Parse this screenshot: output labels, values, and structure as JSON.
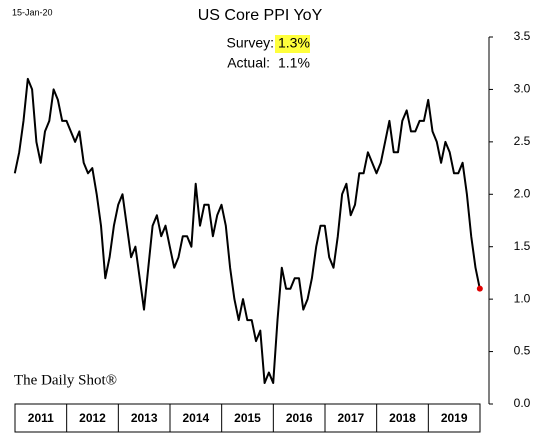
{
  "date_label": "15-Jan-20",
  "chart_data": {
    "type": "line",
    "title": "US Core PPI YoY",
    "survey": {
      "label": "Survey:",
      "value": "1.3%"
    },
    "actual": {
      "label": "Actual:",
      "value": "1.1%"
    },
    "source": "The Daily Shot®",
    "year_bands": [
      "2011",
      "2012",
      "2013",
      "2014",
      "2015",
      "2016",
      "2017",
      "2018",
      "2019"
    ],
    "series": [
      {
        "color": "#000000",
        "last_point_color": "#e00000",
        "values": [
          2.2,
          2.4,
          2.7,
          3.1,
          3.0,
          2.5,
          2.3,
          2.6,
          2.7,
          3.0,
          2.9,
          2.7,
          2.7,
          2.6,
          2.5,
          2.6,
          2.3,
          2.2,
          2.25,
          2.0,
          1.7,
          1.2,
          1.4,
          1.7,
          1.9,
          2.0,
          1.7,
          1.4,
          1.5,
          1.2,
          0.9,
          1.3,
          1.7,
          1.8,
          1.6,
          1.7,
          1.5,
          1.3,
          1.4,
          1.6,
          1.6,
          1.5,
          2.1,
          1.7,
          1.9,
          1.9,
          1.6,
          1.8,
          1.9,
          1.7,
          1.3,
          1.0,
          0.8,
          1.0,
          0.8,
          0.8,
          0.6,
          0.7,
          0.2,
          0.3,
          0.2,
          0.8,
          1.3,
          1.1,
          1.1,
          1.2,
          1.2,
          0.9,
          1.0,
          1.2,
          1.5,
          1.7,
          1.7,
          1.4,
          1.3,
          1.6,
          2.0,
          2.1,
          1.8,
          1.9,
          2.2,
          2.2,
          2.4,
          2.3,
          2.2,
          2.3,
          2.5,
          2.7,
          2.4,
          2.4,
          2.7,
          2.8,
          2.6,
          2.6,
          2.7,
          2.7,
          2.9,
          2.6,
          2.5,
          2.3,
          2.5,
          2.4,
          2.2,
          2.2,
          2.3,
          2.0,
          1.6,
          1.3,
          1.1
        ]
      }
    ],
    "ylim": [
      0,
      3.5
    ],
    "yticks": [
      {
        "value": 0,
        "label": "0.0"
      },
      {
        "value": 0.5,
        "label": "0.5"
      },
      {
        "value": 1,
        "label": "1.0"
      },
      {
        "value": 1.5,
        "label": "1.5"
      },
      {
        "value": 2,
        "label": "2.0"
      },
      {
        "value": 2.5,
        "label": "2.5"
      },
      {
        "value": 3,
        "label": "3.0"
      },
      {
        "value": 3.5,
        "label": "3.5"
      }
    ]
  }
}
